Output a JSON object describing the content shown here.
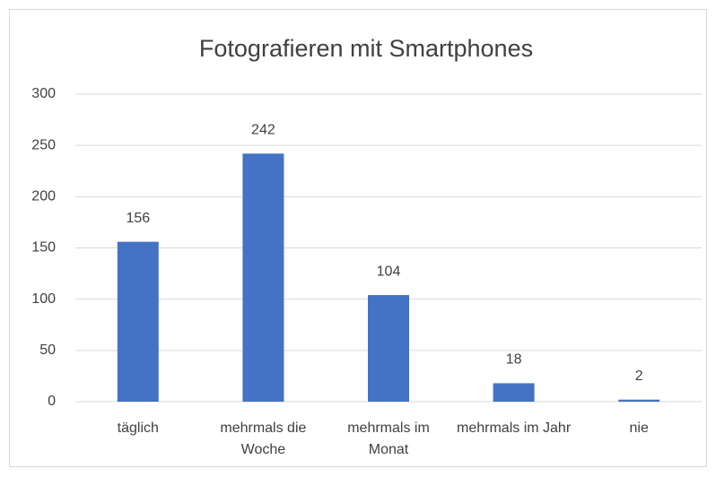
{
  "chart_data": {
    "type": "bar",
    "title": "Fotografieren mit Smartphones",
    "categories": [
      "täglich",
      "mehrmals die Woche",
      "mehrmals im Monat",
      "mehrmals im Jahr",
      "nie"
    ],
    "values": [
      156,
      242,
      104,
      18,
      2
    ],
    "color": "#4472c4",
    "ylim": [
      0,
      300
    ],
    "yticks": [
      0,
      50,
      100,
      150,
      200,
      250,
      300
    ],
    "grid": true
  }
}
